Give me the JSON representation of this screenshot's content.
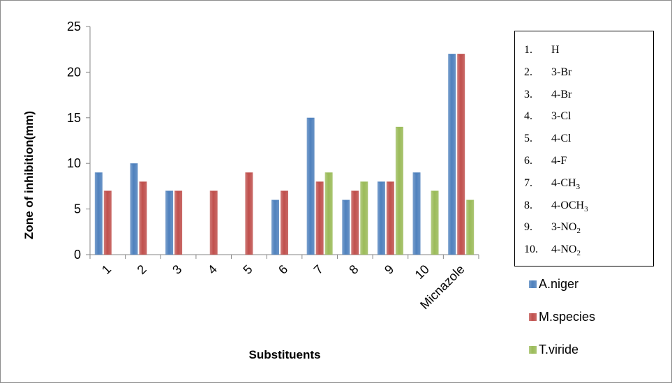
{
  "chart_data": {
    "type": "bar",
    "categories": [
      "1",
      "2",
      "3",
      "4",
      "5",
      "6",
      "7",
      "8",
      "9",
      "10",
      "Micnazole"
    ],
    "series": [
      {
        "name": "A.niger",
        "color": "#4f81bd",
        "values": [
          9,
          10,
          7,
          0,
          0,
          6,
          15,
          6,
          8,
          9,
          22
        ]
      },
      {
        "name": "M.species",
        "color": "#c0504d",
        "values": [
          7,
          8,
          7,
          7,
          9,
          7,
          8,
          7,
          8,
          0,
          22
        ]
      },
      {
        "name": "T.viride",
        "color": "#9bbb59",
        "values": [
          0,
          0,
          0,
          0,
          0,
          0,
          9,
          8,
          14,
          7,
          6
        ]
      }
    ],
    "title": "",
    "xlabel": "Substituents",
    "ylabel": "Zone of inhibition(mm)",
    "ylim": [
      0,
      25
    ],
    "yticks": [
      0,
      5,
      10,
      15,
      20,
      25
    ],
    "grid": false,
    "legend": "right",
    "annotation_box": {
      "position": "top-right",
      "items": [
        {
          "num": "1.",
          "text": "H"
        },
        {
          "num": "2.",
          "text": "3-Br"
        },
        {
          "num": "3.",
          "text": "4-Br"
        },
        {
          "num": "4.",
          "text": "3-Cl"
        },
        {
          "num": "5.",
          "text": "4-Cl"
        },
        {
          "num": "6.",
          "text": "4-F"
        },
        {
          "num": "7.",
          "text": "4-CH",
          "sub": "3"
        },
        {
          "num": "8.",
          "text": "4-OCH",
          "sub": "3"
        },
        {
          "num": "9.",
          "text": "3-NO",
          "sub": "2"
        },
        {
          "num": "10.",
          "text": "4-NO",
          "sub": "2"
        }
      ]
    }
  }
}
